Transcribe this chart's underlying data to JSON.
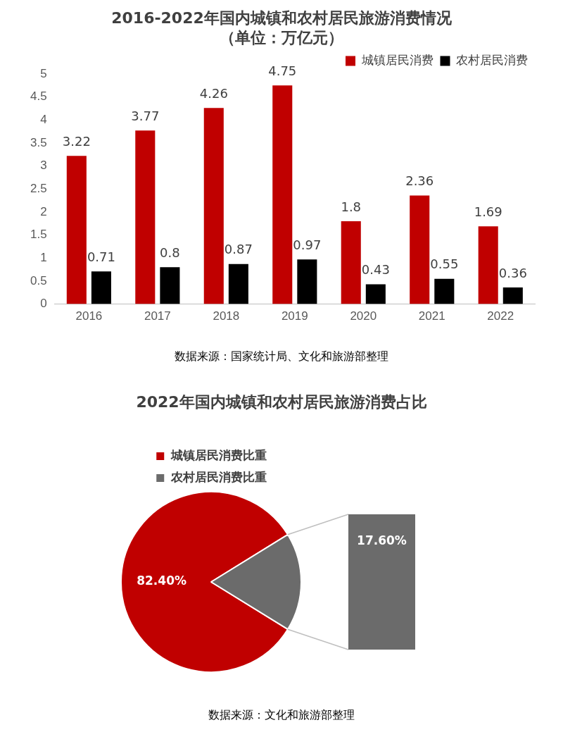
{
  "chart_data": [
    {
      "type": "bar",
      "title": "2016-2022年国内城镇和农村居民旅游消费情况",
      "subtitle": "（单位：万亿元）",
      "categories": [
        "2016",
        "2017",
        "2018",
        "2019",
        "2020",
        "2021",
        "2022"
      ],
      "series": [
        {
          "name": "城镇居民消费",
          "color": "#c00000",
          "values": [
            3.22,
            3.77,
            4.26,
            4.75,
            1.8,
            2.36,
            1.69
          ]
        },
        {
          "name": "农村居民消费",
          "color": "#000000",
          "values": [
            0.71,
            0.8,
            0.87,
            0.97,
            0.43,
            0.55,
            0.36
          ]
        }
      ],
      "ylim": [
        0,
        5
      ],
      "yticks": [
        0,
        0.5,
        1,
        1.5,
        2,
        2.5,
        3,
        3.5,
        4,
        4.5,
        5
      ],
      "data_labels": true,
      "legend": "top right",
      "grid": false,
      "annotations": [
        "数据来源：国家统计局、文化和旅游部整理"
      ]
    },
    {
      "type": "pie",
      "title": "2022年国内城镇和农村居民旅游消费占比",
      "categories": [
        "城镇居民消费比重",
        "农村居民消费比重"
      ],
      "values": [
        82.4,
        17.6
      ],
      "colors": [
        "#c00000",
        "#6b6b6b"
      ],
      "value_labels": [
        "82.40%",
        "17.60%"
      ],
      "legend": "top",
      "annotations": [
        "数据来源：文化和旅游部整理"
      ]
    }
  ]
}
